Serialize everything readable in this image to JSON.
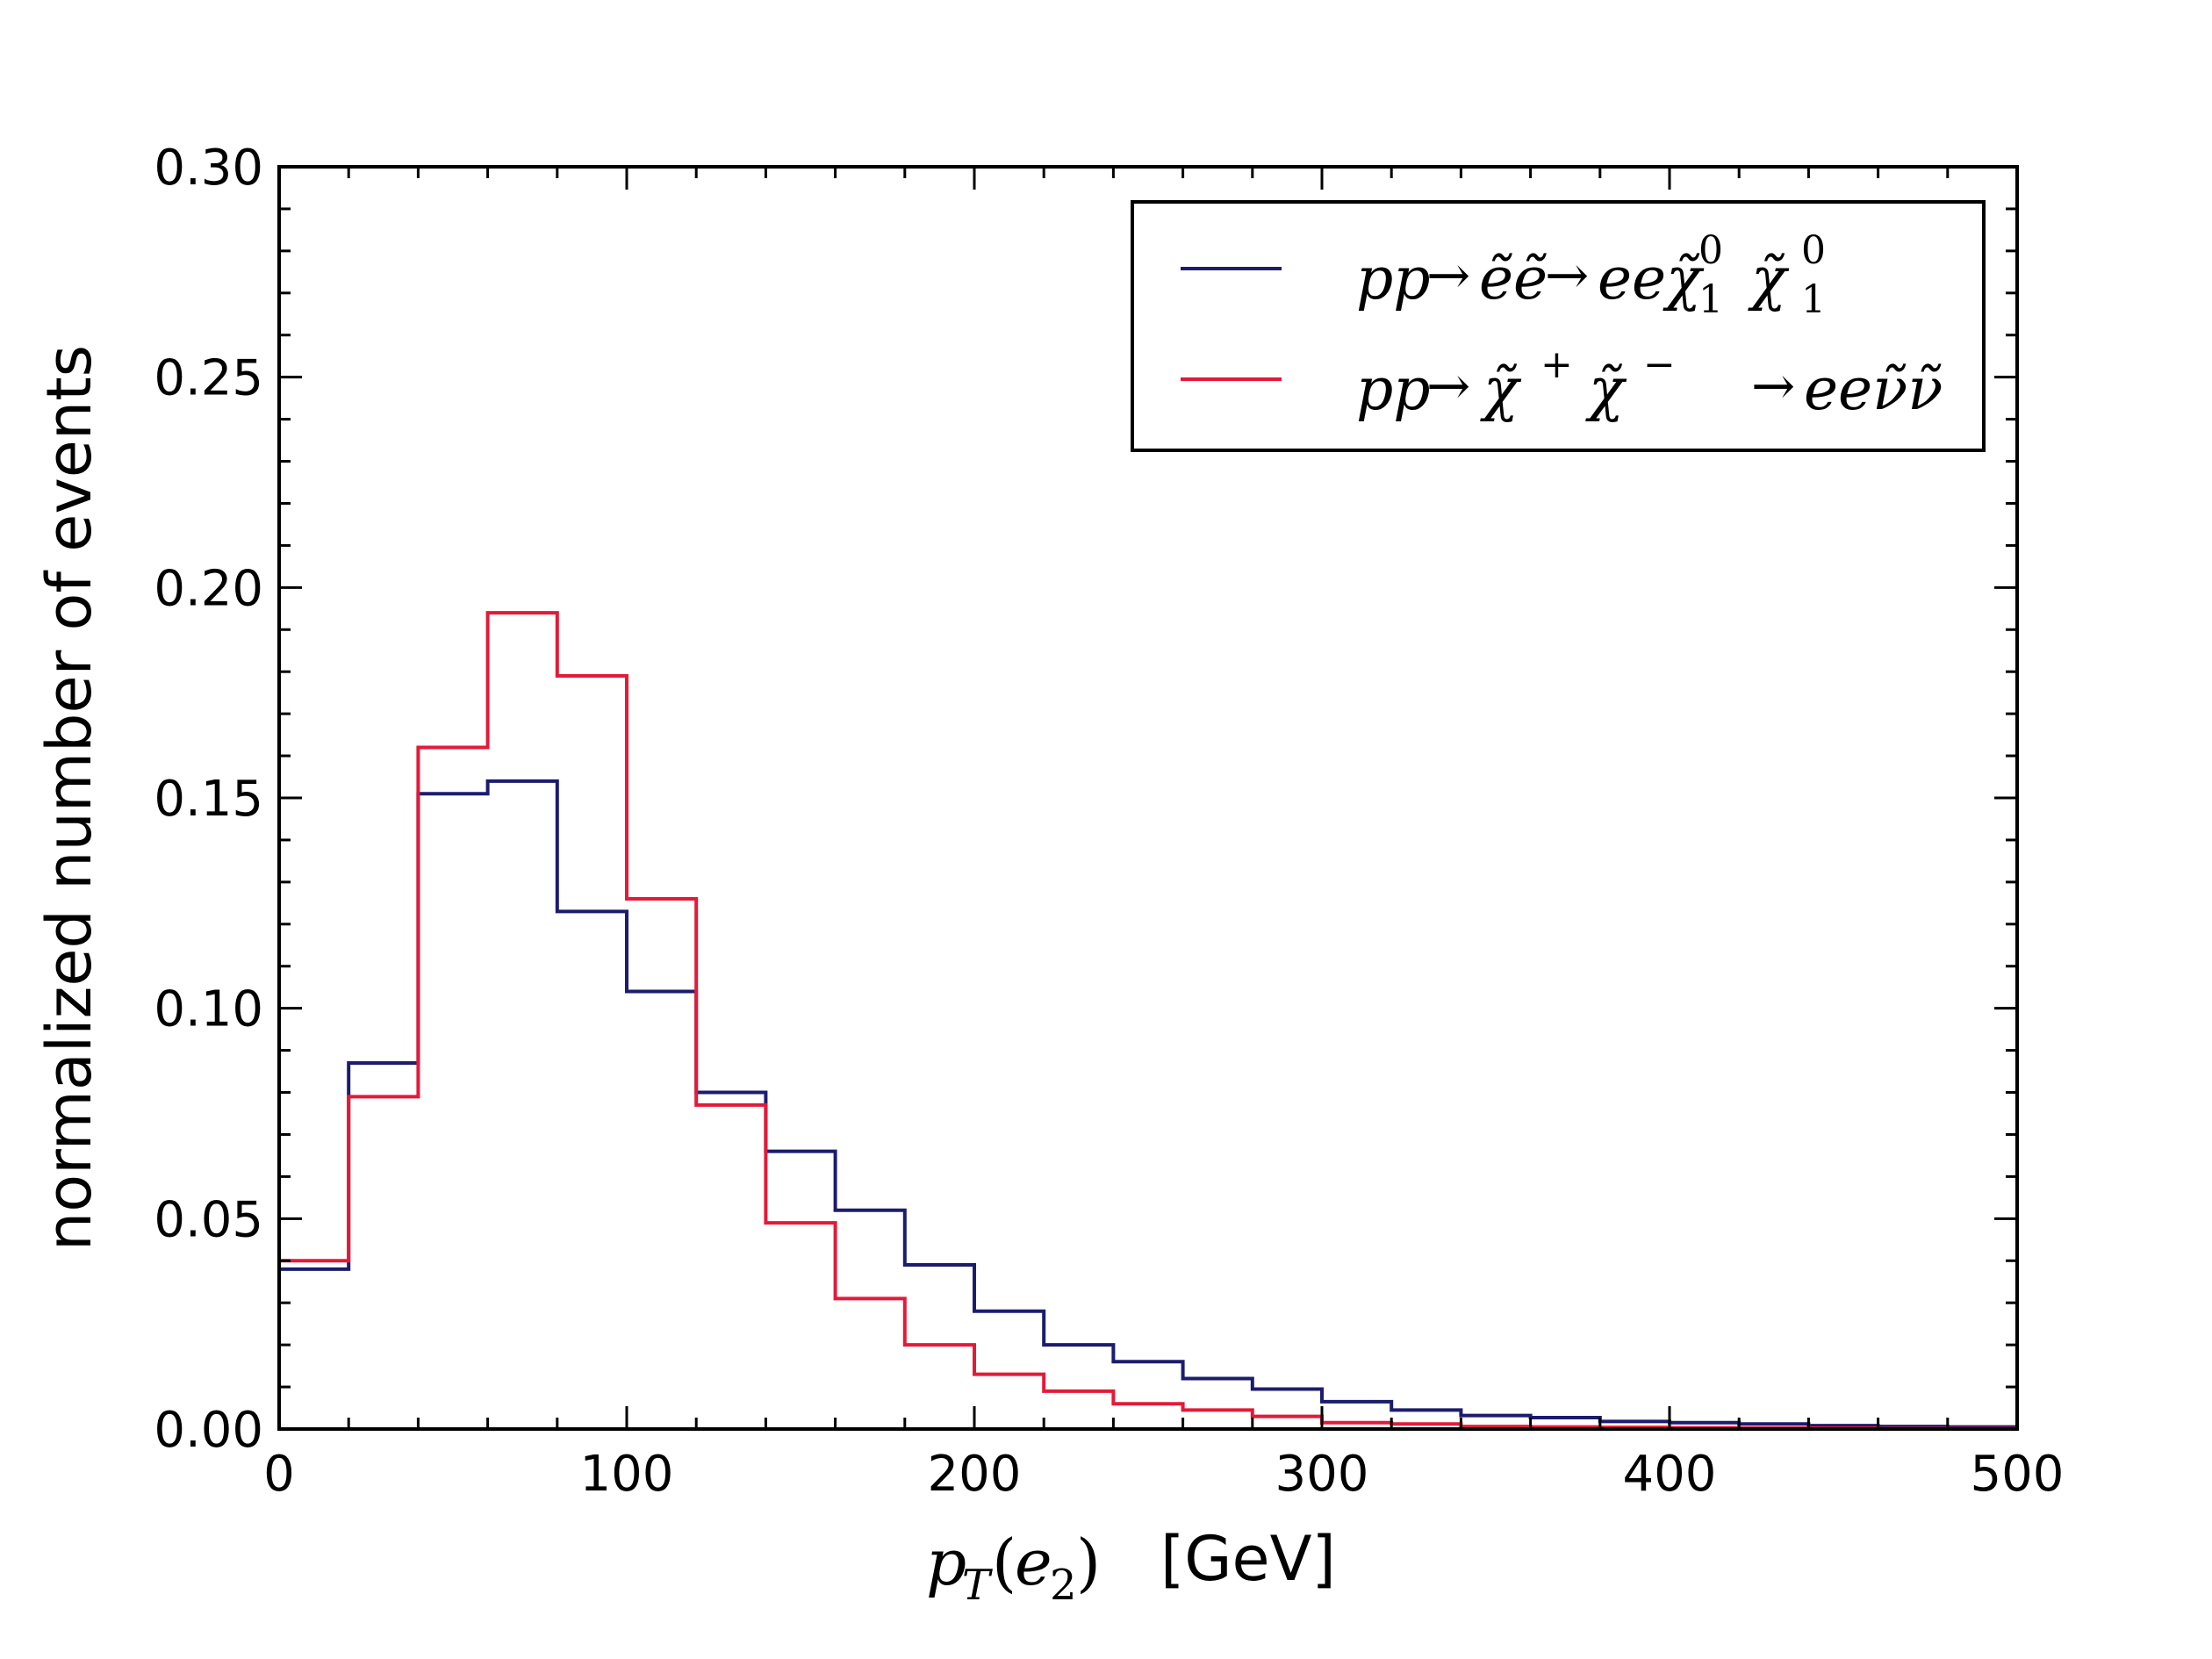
{
  "chart_data": {
    "type": "line",
    "style": "step-histogram",
    "xlabel": {
      "math": "pT(e2)",
      "unit": "[GeV]"
    },
    "ylabel": "normalized number of events",
    "xlim": [
      0,
      500
    ],
    "ylim": [
      0,
      0.3
    ],
    "xticks": [
      0,
      100,
      200,
      300,
      400,
      500
    ],
    "xtick_labels": [
      "0",
      "100",
      "200",
      "300",
      "400",
      "500"
    ],
    "yticks": [
      0.0,
      0.05,
      0.1,
      0.15,
      0.2,
      0.25,
      0.3
    ],
    "ytick_labels": [
      "0.00",
      "0.05",
      "0.10",
      "0.15",
      "0.20",
      "0.25",
      "0.30"
    ],
    "grid": false,
    "legend_position": "top-right",
    "bin_edges": [
      0,
      20,
      40,
      60,
      80,
      100,
      120,
      140,
      160,
      180,
      200,
      220,
      240,
      260,
      280,
      300,
      320,
      340,
      360,
      380,
      400,
      420,
      440,
      460,
      480,
      500
    ],
    "series": [
      {
        "name": "pp → ẽẽ → eeχ̃₁⁰ χ̃₁⁰",
        "color": "#1c1c6e",
        "values": [
          0.038,
          0.087,
          0.151,
          0.154,
          0.123,
          0.104,
          0.08,
          0.066,
          0.052,
          0.039,
          0.028,
          0.02,
          0.016,
          0.012,
          0.0095,
          0.0065,
          0.0045,
          0.0032,
          0.0027,
          0.0018,
          0.0015,
          0.0012,
          0.0008,
          0.0006,
          0.0005
        ]
      },
      {
        "name": "pp → χ̃⁺χ̃⁻ → eeν̃ν̃",
        "color": "#e31a38",
        "values": [
          0.04,
          0.079,
          0.162,
          0.194,
          0.179,
          0.126,
          0.077,
          0.049,
          0.031,
          0.02,
          0.013,
          0.009,
          0.006,
          0.0045,
          0.003,
          0.0015,
          0.0012,
          0.0006,
          0.0005,
          0.0004,
          0.0003,
          0.0002,
          0.0002,
          0.0001,
          0.0001
        ]
      }
    ]
  }
}
